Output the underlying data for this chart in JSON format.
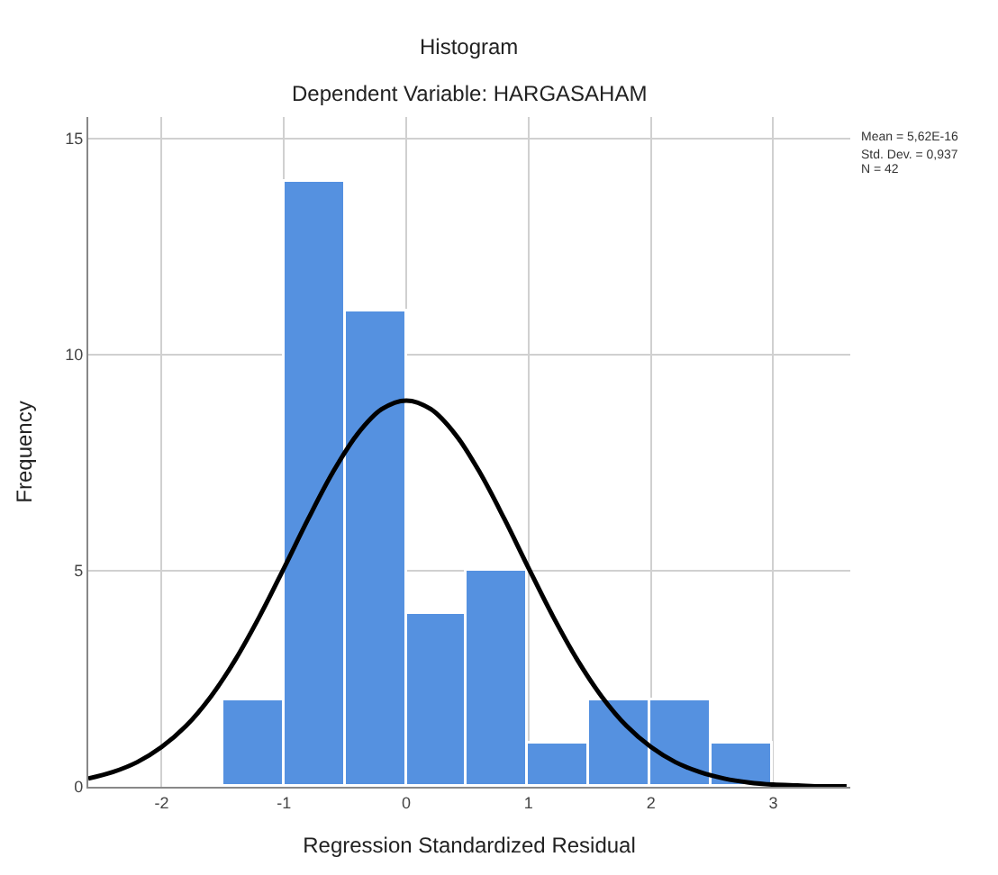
{
  "chart_data": {
    "type": "histogram",
    "title": "Histogram",
    "subtitle": "Dependent Variable: HARGASAHAM",
    "xlabel": "Regression Standardized Residual",
    "ylabel": "Frequency",
    "series": [
      {
        "color": "#5591e0",
        "bins": [
          -1.5,
          -1.0,
          -0.5,
          0,
          0.5,
          1.0,
          1.5,
          2.0,
          2.5,
          3.0
        ],
        "values": [
          2,
          14,
          11,
          4,
          5,
          1,
          2,
          2,
          1
        ]
      },
      {
        "type": "line",
        "color": "#000000",
        "x": [
          -2.6,
          -2.4,
          -2.2,
          -2.0,
          -1.8,
          -1.6,
          -1.4,
          -1.2,
          -1.0,
          -0.8,
          -0.6,
          -0.4,
          -0.2,
          0,
          0.2,
          0.4,
          0.6,
          0.8,
          1.0,
          1.2,
          1.4,
          1.6,
          1.8,
          2.0,
          2.2,
          2.4,
          2.6,
          2.8,
          3.0,
          3.2,
          3.4,
          3.6
        ],
        "values": [
          0.19,
          0.34,
          0.57,
          0.92,
          1.41,
          2.08,
          2.93,
          3.94,
          5.06,
          6.21,
          7.28,
          8.16,
          8.74,
          8.94,
          8.74,
          8.16,
          7.28,
          6.21,
          5.06,
          3.94,
          2.93,
          2.08,
          1.41,
          0.92,
          0.57,
          0.34,
          0.19,
          0.1,
          0.05,
          0.03,
          0.01,
          0.01
        ]
      }
    ],
    "xlim": [
      -2.6,
      3.63
    ],
    "xticks": [
      -2,
      -1,
      0,
      1,
      2,
      3
    ],
    "ylim": [
      0,
      15.5
    ],
    "yticks": [
      0,
      5,
      10,
      15
    ],
    "grid": true,
    "marker": "none",
    "line_style": "solid",
    "annotations": [
      "Mean = 5,62E-16",
      "Std. Dev. = 0,937",
      "N = 42"
    ]
  }
}
